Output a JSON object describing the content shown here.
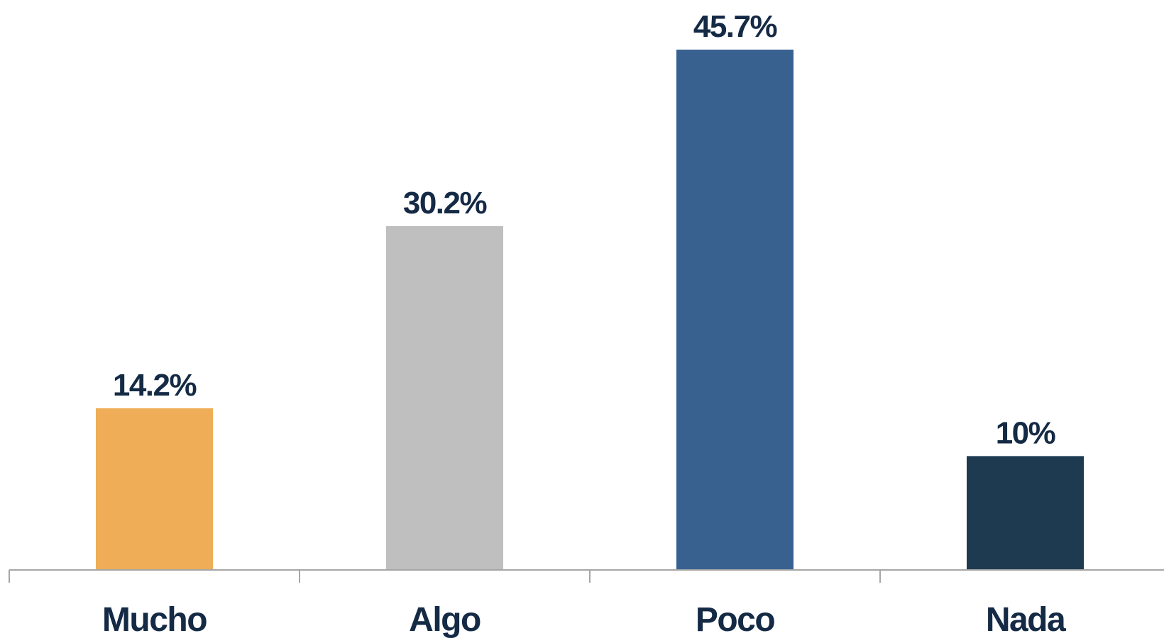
{
  "chart_data": {
    "type": "bar",
    "categories": [
      "Mucho",
      "Algo",
      "Poco",
      "Nada"
    ],
    "values": [
      14.2,
      30.2,
      45.7,
      10
    ],
    "data_labels": [
      "14.2%",
      "30.2%",
      "45.7%",
      "10%"
    ],
    "colors": [
      "#efad57",
      "#bfbfbf",
      "#386190",
      "#1e3a50"
    ],
    "title": "",
    "xlabel": "",
    "ylabel": "",
    "ylim": [
      0,
      50
    ],
    "grid": false,
    "legend": "none",
    "label_color": "#142a45",
    "axis_color": "#a6a6a6"
  }
}
